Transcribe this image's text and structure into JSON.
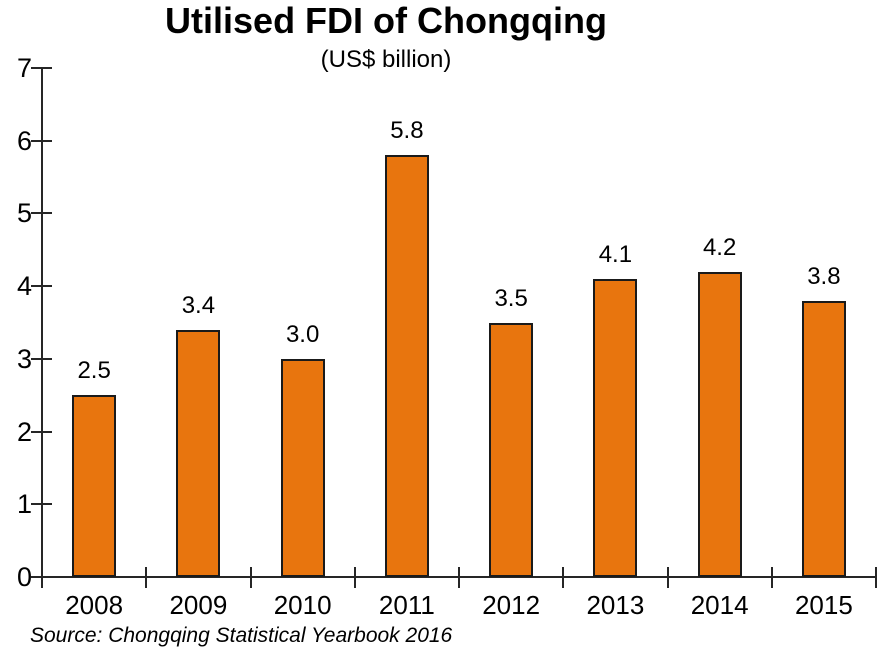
{
  "chart_data": {
    "type": "bar",
    "title": "Utilised FDI of Chongqing",
    "subtitle": "(US$ billion)",
    "categories": [
      "2008",
      "2009",
      "2010",
      "2011",
      "2012",
      "2013",
      "2014",
      "2015"
    ],
    "values": [
      2.5,
      3.4,
      3.0,
      5.8,
      3.5,
      4.1,
      4.2,
      3.8
    ],
    "value_labels": [
      "2.5",
      "3.4",
      "3.0",
      "5.8",
      "3.5",
      "4.1",
      "4.2",
      "3.8"
    ],
    "xlabel": "",
    "ylabel": "",
    "ylim": [
      0,
      7
    ],
    "yticks": [
      0,
      1,
      2,
      3,
      4,
      5,
      6,
      7
    ],
    "grid": false,
    "legend": false,
    "bar_color": "#E8750E",
    "bar_border_color": "#1A1A1A",
    "axis_color": "#262626",
    "text_color": "#000000",
    "source": "Source: Chongqing Statistical Yearbook 2016"
  }
}
